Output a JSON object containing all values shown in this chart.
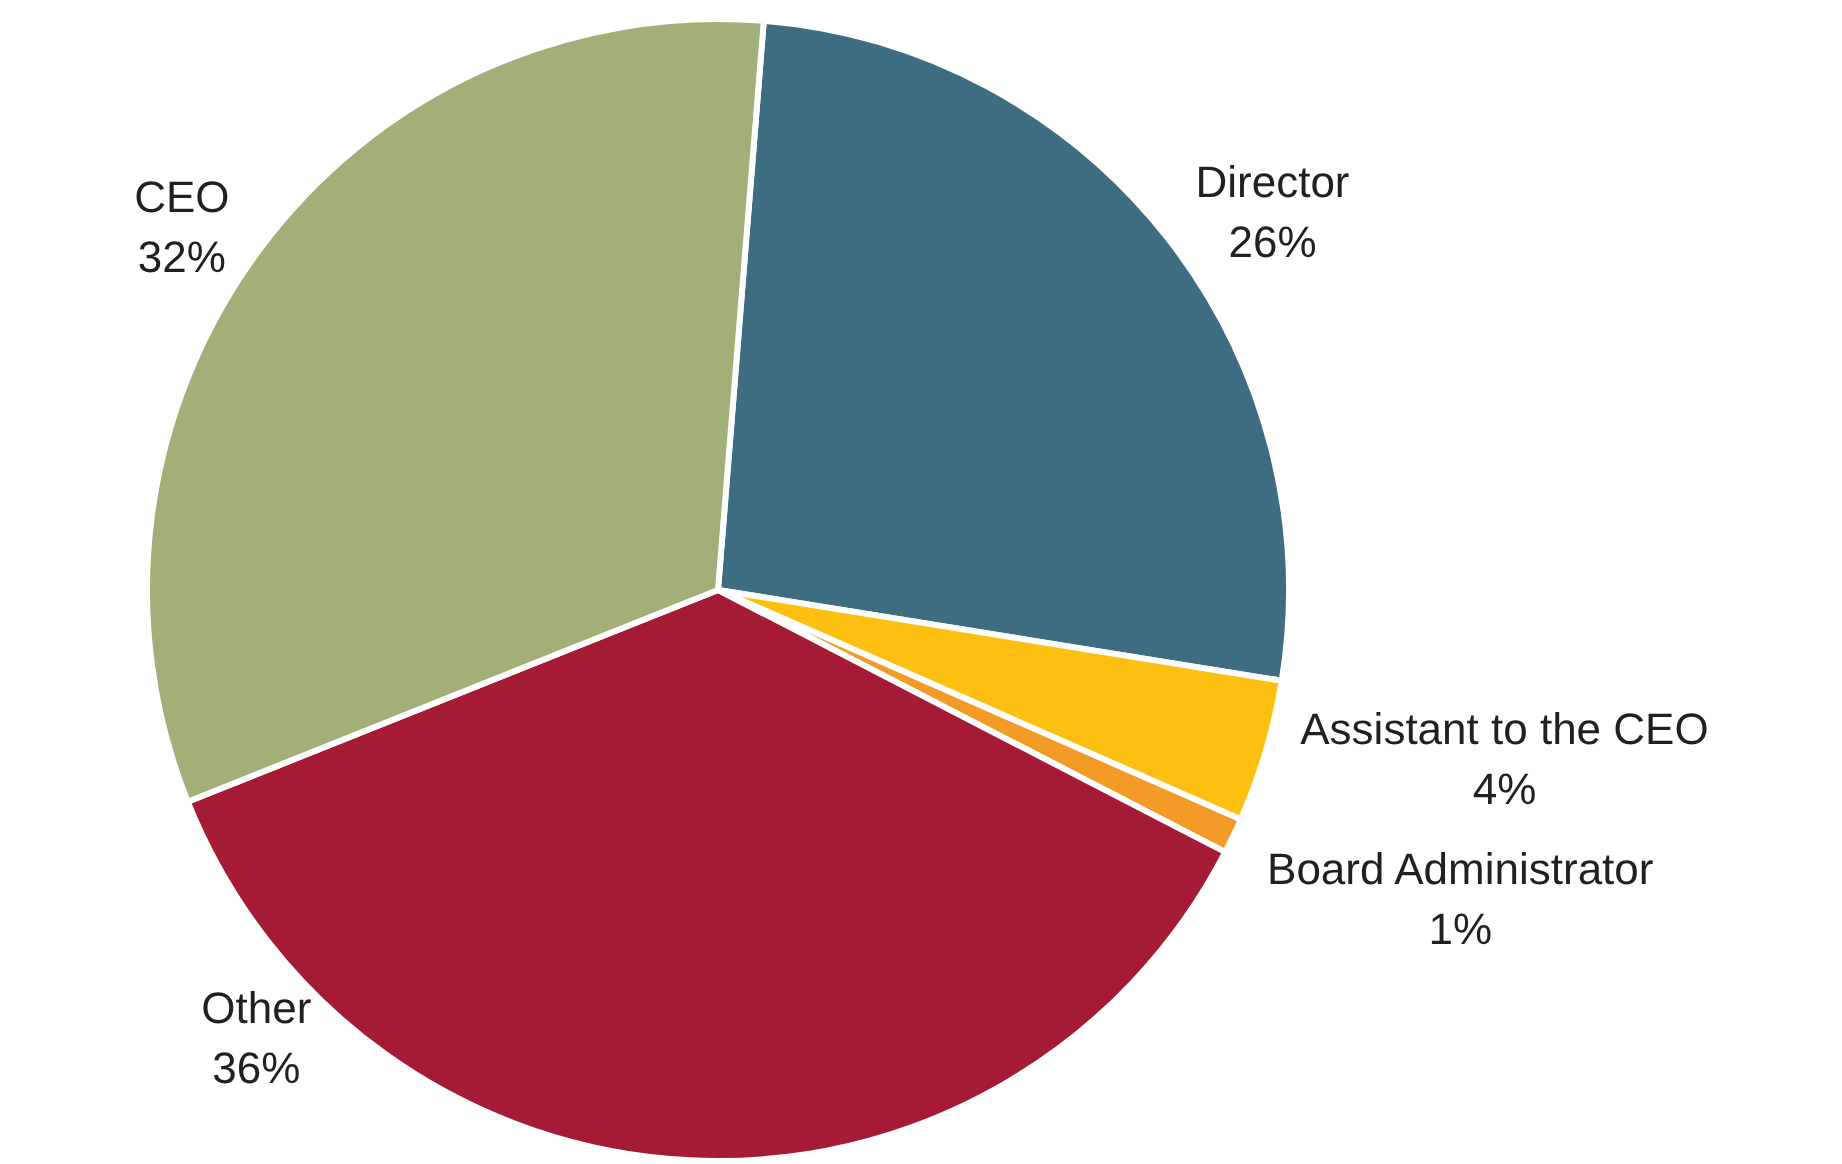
{
  "chart_data": {
    "type": "pie",
    "categories": [
      "Director",
      "Assistant to the CEO",
      "Board Administrator",
      "Other",
      "CEO"
    ],
    "values": [
      26,
      4,
      1,
      36,
      32
    ],
    "value_labels": [
      "26%",
      "4%",
      "1%",
      "36%",
      "32%"
    ],
    "colors": [
      "#3e6d82",
      "#fdc010",
      "#f39a27",
      "#a51b35",
      "#a3af78"
    ],
    "legend": false
  }
}
